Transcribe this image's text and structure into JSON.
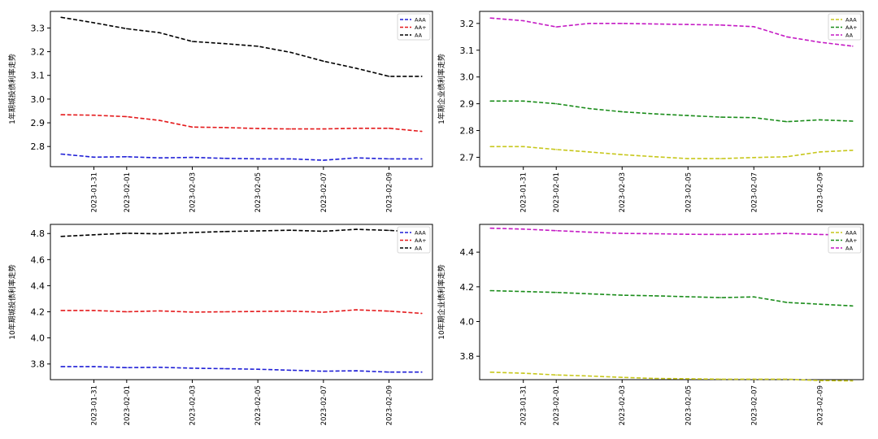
{
  "chart_data": [
    {
      "type": "line",
      "ylabel": "1年期城投债利率走势",
      "x": [
        "2023-01-30",
        "2023-01-31",
        "2023-02-01",
        "2023-02-02",
        "2023-02-03",
        "2023-02-04",
        "2023-02-05",
        "2023-02-06",
        "2023-02-07",
        "2023-02-08",
        "2023-02-09",
        "2023-02-10"
      ],
      "xticks": [
        "2023-01-31",
        "2023-02-01",
        "2023-02-03",
        "2023-02-05",
        "2023-02-07",
        "2023-02-09"
      ],
      "ylim": [
        2.715,
        3.37
      ],
      "yticks": [
        "2.8",
        "2.9",
        "3.0",
        "3.1",
        "3.2",
        "3.3"
      ],
      "legend_position": "top-right",
      "series": [
        {
          "name": "AAA",
          "color": "#1f1fd6",
          "values": [
            2.768,
            2.755,
            2.757,
            2.752,
            2.754,
            2.75,
            2.748,
            2.748,
            2.742,
            2.752,
            2.748,
            2.748
          ]
        },
        {
          "name": "AA+",
          "color": "#e41a1c",
          "values": [
            2.934,
            2.932,
            2.926,
            2.91,
            2.882,
            2.88,
            2.876,
            2.874,
            2.874,
            2.877,
            2.877,
            2.864
          ]
        },
        {
          "name": "AA",
          "color": "#000000",
          "values": [
            3.345,
            3.322,
            3.297,
            3.28,
            3.243,
            3.234,
            3.223,
            3.197,
            3.16,
            3.13,
            3.096,
            3.096
          ]
        }
      ]
    },
    {
      "type": "line",
      "ylabel": "1年期企业债利率走势",
      "x": [
        "2023-01-30",
        "2023-01-31",
        "2023-02-01",
        "2023-02-02",
        "2023-02-03",
        "2023-02-04",
        "2023-02-05",
        "2023-02-06",
        "2023-02-07",
        "2023-02-08",
        "2023-02-09",
        "2023-02-10"
      ],
      "xticks": [
        "2023-01-31",
        "2023-02-01",
        "2023-02-03",
        "2023-02-05",
        "2023-02-07",
        "2023-02-09"
      ],
      "ylim": [
        2.665,
        3.245
      ],
      "yticks": [
        "2.7",
        "2.8",
        "2.9",
        "3.0",
        "3.1",
        "3.2"
      ],
      "legend_position": "top-right",
      "series": [
        {
          "name": "AAA",
          "color": "#c7c71c",
          "values": [
            2.74,
            2.74,
            2.729,
            2.72,
            2.71,
            2.702,
            2.695,
            2.695,
            2.699,
            2.702,
            2.72,
            2.726
          ]
        },
        {
          "name": "AA+",
          "color": "#1a8c1a",
          "values": [
            2.91,
            2.91,
            2.9,
            2.882,
            2.87,
            2.862,
            2.856,
            2.85,
            2.848,
            2.833,
            2.84,
            2.835
          ]
        },
        {
          "name": "AA",
          "color": "#c41ac4",
          "values": [
            3.22,
            3.21,
            3.187,
            3.2,
            3.2,
            3.198,
            3.196,
            3.194,
            3.188,
            3.15,
            3.13,
            3.115
          ]
        }
      ]
    },
    {
      "type": "line",
      "ylabel": "10年期城投债利率走势",
      "x": [
        "2023-01-30",
        "2023-01-31",
        "2023-02-01",
        "2023-02-02",
        "2023-02-03",
        "2023-02-04",
        "2023-02-05",
        "2023-02-06",
        "2023-02-07",
        "2023-02-08",
        "2023-02-09",
        "2023-02-10"
      ],
      "xticks": [
        "2023-01-31",
        "2023-02-01",
        "2023-02-03",
        "2023-02-05",
        "2023-02-07",
        "2023-02-09"
      ],
      "ylim": [
        3.68,
        4.87
      ],
      "yticks": [
        "3.8",
        "4.0",
        "4.2",
        "4.4",
        "4.6",
        "4.8"
      ],
      "legend_position": "top-right",
      "series": [
        {
          "name": "AAA",
          "color": "#1f1fd6",
          "values": [
            3.78,
            3.78,
            3.772,
            3.775,
            3.768,
            3.764,
            3.76,
            3.752,
            3.745,
            3.748,
            3.738,
            3.738
          ]
        },
        {
          "name": "AA+",
          "color": "#e41a1c",
          "values": [
            4.21,
            4.21,
            4.2,
            4.207,
            4.198,
            4.2,
            4.203,
            4.205,
            4.197,
            4.215,
            4.205,
            4.188
          ]
        },
        {
          "name": "AA",
          "color": "#000000",
          "values": [
            4.778,
            4.79,
            4.802,
            4.798,
            4.808,
            4.815,
            4.82,
            4.825,
            4.817,
            4.832,
            4.824,
            4.81
          ]
        }
      ]
    },
    {
      "type": "line",
      "ylabel": "10年期企业债利率走势",
      "x": [
        "2023-01-30",
        "2023-01-31",
        "2023-02-01",
        "2023-02-02",
        "2023-02-03",
        "2023-02-04",
        "2023-02-05",
        "2023-02-06",
        "2023-02-07",
        "2023-02-08",
        "2023-02-09",
        "2023-02-10"
      ],
      "xticks": [
        "2023-01-31",
        "2023-02-01",
        "2023-02-03",
        "2023-02-05",
        "2023-02-07",
        "2023-02-09"
      ],
      "ylim": [
        3.665,
        4.56
      ],
      "yticks": [
        "3.8",
        "4.0",
        "4.2",
        "4.4"
      ],
      "legend_position": "top-right",
      "series": [
        {
          "name": "AAA",
          "color": "#c7c71c",
          "values": [
            3.708,
            3.702,
            3.692,
            3.686,
            3.678,
            3.672,
            3.67,
            3.668,
            3.668,
            3.668,
            3.66,
            3.658
          ]
        },
        {
          "name": "AA+",
          "color": "#1a8c1a",
          "values": [
            4.178,
            4.173,
            4.168,
            4.16,
            4.152,
            4.148,
            4.143,
            4.138,
            4.142,
            4.11,
            4.1,
            4.09
          ]
        },
        {
          "name": "AA",
          "color": "#c41ac4",
          "values": [
            4.538,
            4.533,
            4.524,
            4.515,
            4.508,
            4.506,
            4.503,
            4.502,
            4.503,
            4.508,
            4.502,
            4.498
          ]
        }
      ]
    }
  ]
}
